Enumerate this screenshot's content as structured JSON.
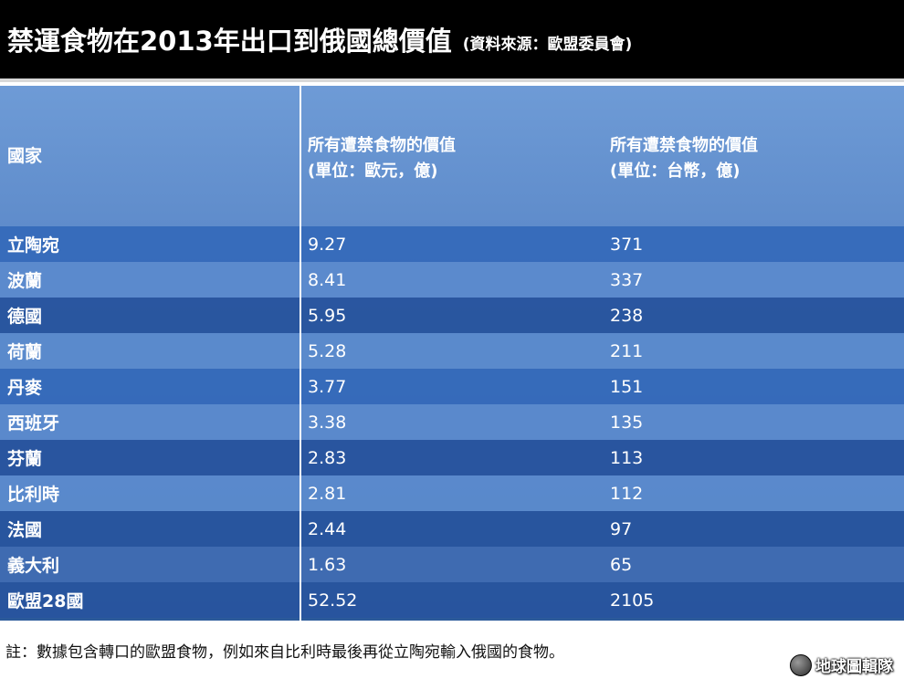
{
  "title": "禁運食物在2013年出口到俄國總價值",
  "source": "(資料來源：歐盟委員會)",
  "columns": {
    "country": "國家",
    "eur_line1": "所有遭禁食物的價值",
    "eur_line2": "(單位：歐元，億)",
    "twd_line1": "所有遭禁食物的價值",
    "twd_line2": "(單位：台幣，億)"
  },
  "chart_data": {
    "type": "table",
    "columns": [
      "國家",
      "所有遭禁食物的價值 (單位：歐元，億)",
      "所有遭禁食物的價值 (單位：台幣，億)"
    ],
    "rows": [
      {
        "country": "立陶宛",
        "eur": "9.27",
        "twd": "371"
      },
      {
        "country": "波蘭",
        "eur": "8.41",
        "twd": "337"
      },
      {
        "country": "德國",
        "eur": "5.95",
        "twd": "238"
      },
      {
        "country": "荷蘭",
        "eur": "5.28",
        "twd": "211"
      },
      {
        "country": "丹麥",
        "eur": "3.77",
        "twd": "151"
      },
      {
        "country": "西班牙",
        "eur": "3.38",
        "twd": "135"
      },
      {
        "country": "芬蘭",
        "eur": "2.83",
        "twd": "113"
      },
      {
        "country": "比利時",
        "eur": "2.81",
        "twd": "112"
      },
      {
        "country": "法國",
        "eur": "2.44",
        "twd": "97"
      },
      {
        "country": "義大利",
        "eur": "1.63",
        "twd": "65"
      },
      {
        "country": "歐盟28國",
        "eur": "52.52",
        "twd": "2105"
      }
    ]
  },
  "footnote": "註：數據包含轉口的歐盟食物，例如來自比利時最後再從立陶宛輸入俄國的食物。",
  "credit": "地球圖輯隊",
  "colors": {
    "title_bg": "#000000",
    "table_blue": "#4a78bb",
    "text": "#ffffff"
  }
}
